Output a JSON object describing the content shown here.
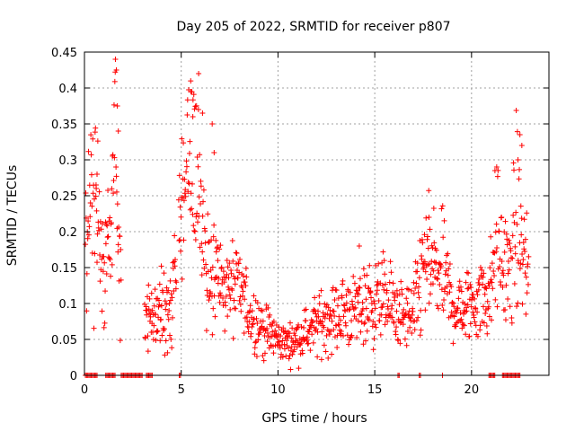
{
  "chart_data": {
    "type": "scatter",
    "title": "Day 205 of 2022, SRMTID for receiver p807",
    "xlabel": "GPS time / hours",
    "ylabel": "SRMTID / TECUs",
    "xlim": [
      0,
      24
    ],
    "ylim": [
      0,
      0.45
    ],
    "xticks": [
      0,
      5,
      10,
      15,
      20
    ],
    "xtick_labels": [
      "0",
      "5",
      "10",
      "15",
      "20"
    ],
    "yticks": [
      0,
      0.05,
      0.1,
      0.15,
      0.2,
      0.25,
      0.3,
      0.35,
      0.4,
      0.45
    ],
    "ytick_labels": [
      "0",
      "0.05",
      "0.1",
      "0.15",
      "0.2",
      "0.25",
      "0.3",
      "0.35",
      "0.4",
      "0.45"
    ],
    "grid": true,
    "marker": "+",
    "color": "#ff0000",
    "series": [
      {
        "name": "SRMTID",
        "profile": [
          [
            0.15,
            0.2
          ],
          [
            0.6,
            0.25
          ],
          [
            0.75,
            0.2
          ],
          [
            1.0,
            0.12
          ],
          [
            1.3,
            0.2
          ],
          [
            1.6,
            0.3
          ],
          [
            1.8,
            0.15
          ],
          [
            3.1,
            0.1
          ],
          [
            3.5,
            0.08
          ],
          [
            4.0,
            0.09
          ],
          [
            4.5,
            0.09
          ],
          [
            4.9,
            0.2
          ],
          [
            5.3,
            0.28
          ],
          [
            5.7,
            0.32
          ],
          [
            6.0,
            0.24
          ],
          [
            6.3,
            0.16
          ],
          [
            6.7,
            0.15
          ],
          [
            7.0,
            0.13
          ],
          [
            7.5,
            0.12
          ],
          [
            8.0,
            0.12
          ],
          [
            8.5,
            0.09
          ],
          [
            9.0,
            0.07
          ],
          [
            9.5,
            0.06
          ],
          [
            10.0,
            0.05
          ],
          [
            10.5,
            0.045
          ],
          [
            11.0,
            0.05
          ],
          [
            11.5,
            0.06
          ],
          [
            12.0,
            0.07
          ],
          [
            12.5,
            0.08
          ],
          [
            13.0,
            0.08
          ],
          [
            13.5,
            0.09
          ],
          [
            14.0,
            0.09
          ],
          [
            14.5,
            0.1
          ],
          [
            15.0,
            0.1
          ],
          [
            15.5,
            0.11
          ],
          [
            16.0,
            0.09
          ],
          [
            16.5,
            0.08
          ],
          [
            17.0,
            0.08
          ],
          [
            17.5,
            0.15
          ],
          [
            18.0,
            0.15
          ],
          [
            18.5,
            0.14
          ],
          [
            19.0,
            0.1
          ],
          [
            19.5,
            0.09
          ],
          [
            20.0,
            0.1
          ],
          [
            20.5,
            0.11
          ],
          [
            21.0,
            0.12
          ],
          [
            21.3,
            0.2
          ],
          [
            21.5,
            0.16
          ],
          [
            22.0,
            0.14
          ],
          [
            22.3,
            0.22
          ],
          [
            22.8,
            0.15
          ]
        ],
        "gaps": [
          [
            1.9,
            3.1
          ],
          [
            4.75,
            4.85
          ],
          [
            22.95,
            24
          ]
        ],
        "spikes": [
          [
            1.6,
            0.44
          ],
          [
            1.65,
            0.425
          ],
          [
            1.7,
            0.375
          ],
          [
            1.75,
            0.34
          ],
          [
            5.5,
            0.395
          ],
          [
            5.6,
            0.36
          ],
          [
            5.9,
            0.42
          ],
          [
            6.1,
            0.365
          ],
          [
            6.6,
            0.35
          ],
          [
            6.7,
            0.31
          ],
          [
            14.2,
            0.18
          ],
          [
            17.8,
            0.22
          ],
          [
            21.3,
            0.29
          ],
          [
            22.5,
            0.335
          ],
          [
            22.6,
            0.32
          ],
          [
            22.4,
            0.3
          ],
          [
            0.65,
            0.28
          ],
          [
            0.6,
            0.265
          ]
        ],
        "zero_segments": [
          [
            0.05,
            0.7
          ],
          [
            1.1,
            1.6
          ],
          [
            1.9,
            3.0
          ],
          [
            3.2,
            3.55
          ],
          [
            4.9,
            5.0
          ],
          [
            16.2,
            16.3
          ],
          [
            17.3,
            17.4
          ],
          [
            18.5,
            18.55
          ],
          [
            20.9,
            21.2
          ],
          [
            21.6,
            22.5
          ]
        ]
      }
    ]
  }
}
